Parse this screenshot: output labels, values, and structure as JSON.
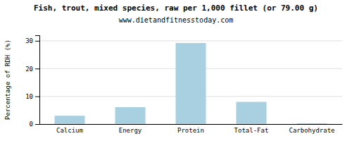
{
  "chart_data": {
    "type": "bar",
    "title": "Fish, trout, mixed species, raw per 1,000 fillet (or 79.00 g)",
    "subtitle": "www.dietandfitnesstoday.com",
    "categories": [
      "Calcium",
      "Energy",
      "Protein",
      "Total-Fat",
      "Carbohydrate"
    ],
    "values": [
      3.0,
      6.1,
      29.2,
      8.0,
      0.3
    ],
    "color": "#a8d0e0",
    "ylabel": "Percentage of RDH (%)",
    "ylim": [
      0,
      32
    ],
    "yticks": [
      0,
      10,
      20,
      30
    ],
    "grid": true
  }
}
